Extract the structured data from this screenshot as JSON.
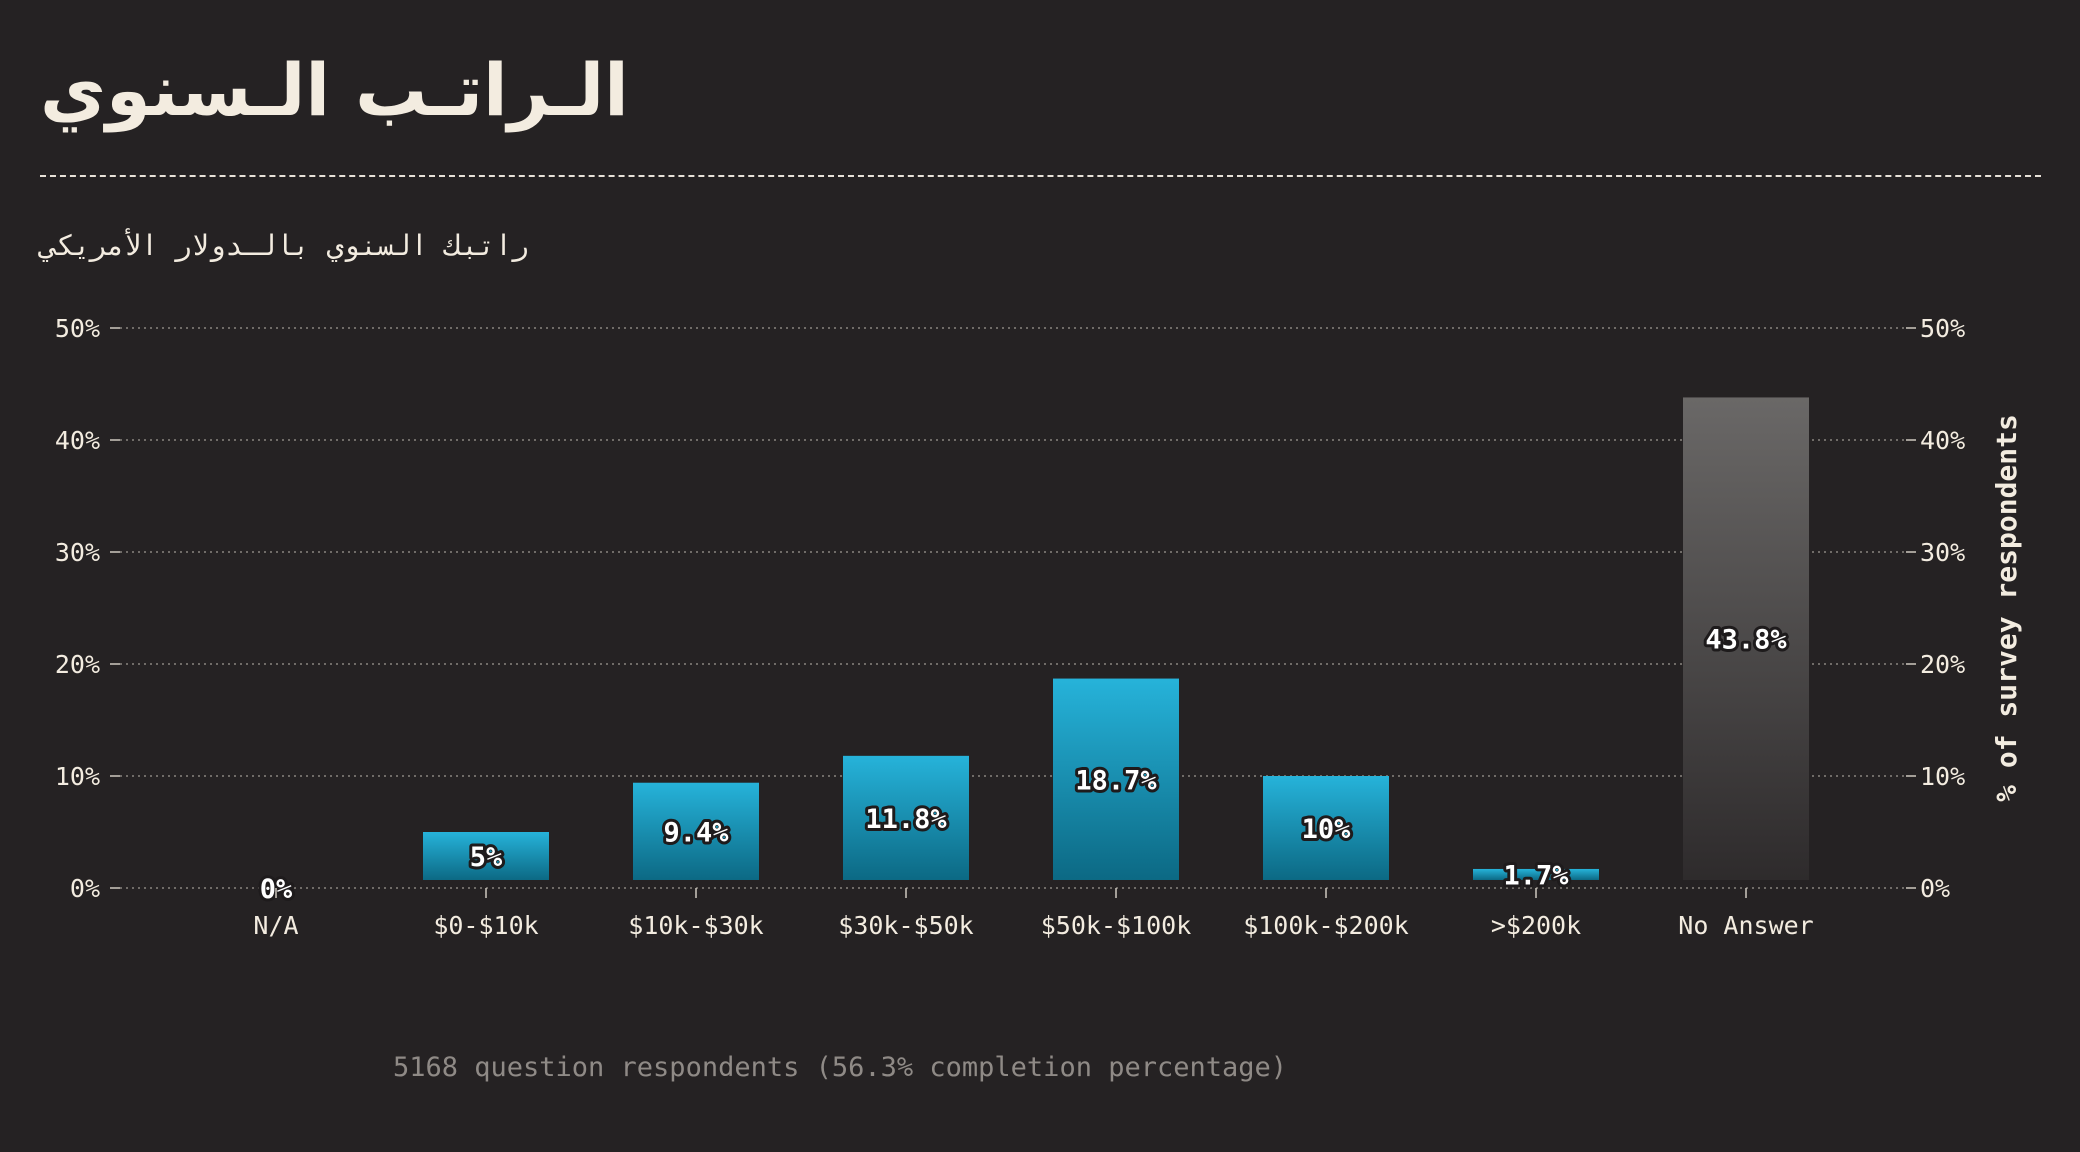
{
  "header": {
    "title": "الـراتـب الـسنوي",
    "subtitle": "راتبك السنوي بالـدولار الأمريكي"
  },
  "footer": {
    "caption": "5168 question respondents (56.3% completion percentage)"
  },
  "colors": {
    "background": "#252223",
    "bar_top": "#26b3da",
    "bar_bottom": "#0c6984",
    "noanswer_top": "#6a6867",
    "noanswer_bottom": "#2e2b2c",
    "text": "#f3ece0"
  },
  "chart_data": {
    "type": "bar",
    "categories": [
      "N/A",
      "$0-$10k",
      "$10k-$30k",
      "$30k-$50k",
      "$50k-$100k",
      "$100k-$200k",
      ">$200k",
      "No Answer"
    ],
    "values": [
      0,
      5,
      9.4,
      11.8,
      18.7,
      10,
      1.7,
      43.8
    ],
    "data_labels": [
      "0%",
      "5%",
      "9.4%",
      "11.8%",
      "18.7%",
      "10%",
      "1.7%",
      "43.8%"
    ],
    "y_ticks": [
      0,
      10,
      20,
      30,
      40,
      50
    ],
    "y_tick_labels": [
      "0%",
      "10%",
      "20%",
      "30%",
      "40%",
      "50%"
    ],
    "ylim": [
      0,
      50
    ],
    "ylabel_right": "% of survey respondents",
    "grid": true,
    "highlight_category": "No Answer"
  }
}
